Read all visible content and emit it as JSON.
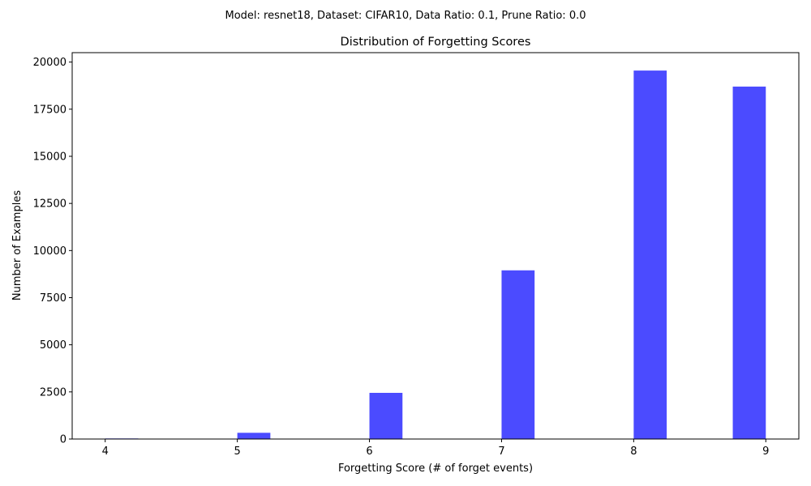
{
  "figure": {
    "suptitle": "Model: resnet18, Dataset: CIFAR10, Data Ratio: 0.1, Prune Ratio: 0.0"
  },
  "chart_data": {
    "type": "bar",
    "title": "Distribution of Forgetting Scores",
    "xlabel": "Forgetting Score (# of forget events)",
    "ylabel": "Number of Examples",
    "xlim": [
      3.75,
      9.25
    ],
    "ylim": [
      0,
      20500
    ],
    "xticks": [
      4,
      5,
      6,
      7,
      8,
      9
    ],
    "yticks": [
      0,
      2500,
      5000,
      7500,
      10000,
      12500,
      15000,
      17500,
      20000
    ],
    "bar_color": "#4b4bff",
    "bars": [
      {
        "x_start": 4.0,
        "x_end": 4.25,
        "value": 30
      },
      {
        "x_start": 5.0,
        "x_end": 5.25,
        "value": 330
      },
      {
        "x_start": 6.0,
        "x_end": 6.25,
        "value": 2450
      },
      {
        "x_start": 7.0,
        "x_end": 7.25,
        "value": 8950
      },
      {
        "x_start": 8.0,
        "x_end": 8.25,
        "value": 19550
      },
      {
        "x_start": 8.75,
        "x_end": 9.0,
        "value": 18700
      }
    ],
    "grid": false,
    "legend": "none"
  }
}
